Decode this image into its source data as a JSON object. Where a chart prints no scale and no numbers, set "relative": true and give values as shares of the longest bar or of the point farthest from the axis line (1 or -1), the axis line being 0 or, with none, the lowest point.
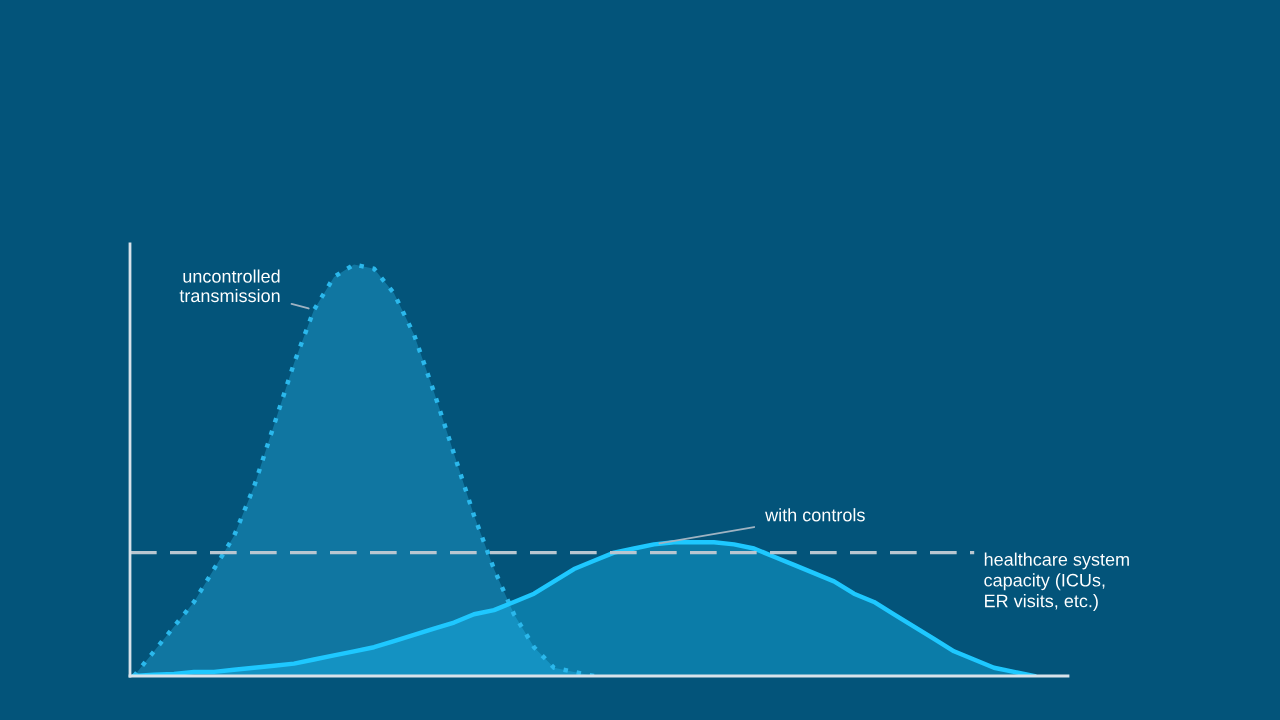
{
  "chart_data": {
    "type": "area",
    "relative": true,
    "legend": false,
    "marker": "none",
    "categories": [
      null,
      null,
      null,
      null,
      null,
      null,
      null,
      null,
      null,
      null,
      null,
      null,
      null,
      null,
      null,
      null,
      null,
      null,
      null,
      null,
      null,
      null,
      null,
      null,
      null,
      null,
      null,
      null,
      null,
      null,
      null,
      null,
      null,
      null,
      null,
      null,
      null,
      null,
      null,
      null,
      null,
      null,
      null,
      null,
      null,
      null
    ],
    "series": [
      {
        "name": "uncontrolled\ntransmission",
        "color": "#2bb8ec",
        "line_style": "dotted",
        "values": [
          0,
          0.06,
          0.12,
          0.18,
          0.26,
          0.34,
          0.46,
          0.61,
          0.76,
          0.89,
          0.97,
          1.0,
          0.99,
          0.93,
          0.83,
          0.69,
          0.54,
          0.39,
          0.26,
          0.15,
          0.07,
          0.02,
          0.01,
          0,
          null,
          null,
          null,
          null,
          null,
          null,
          null,
          null,
          null,
          null,
          null,
          null,
          null,
          null,
          null,
          null,
          null,
          null,
          null,
          null,
          null,
          null
        ]
      },
      {
        "name": "with controls",
        "color": "#1ec8ff",
        "line_style": "solid",
        "values": [
          0,
          0.003,
          0.005,
          0.01,
          0.01,
          0.015,
          0.02,
          0.025,
          0.03,
          0.04,
          0.05,
          0.06,
          0.07,
          0.085,
          0.1,
          0.115,
          0.13,
          0.15,
          0.16,
          0.18,
          0.2,
          0.23,
          0.26,
          0.28,
          0.3,
          0.31,
          0.32,
          0.325,
          0.325,
          0.325,
          0.32,
          0.31,
          0.29,
          0.27,
          0.25,
          0.23,
          0.2,
          0.18,
          0.15,
          0.12,
          0.09,
          0.06,
          0.04,
          0.02,
          0.01,
          0
        ]
      }
    ],
    "ref_lines": [
      {
        "axis": "y",
        "value": 0.3,
        "label": "healthcare system\ncapacity (ICUs,\nER visits, etc.)",
        "color": "#b9c6d0",
        "line_style": "dashed"
      }
    ]
  }
}
